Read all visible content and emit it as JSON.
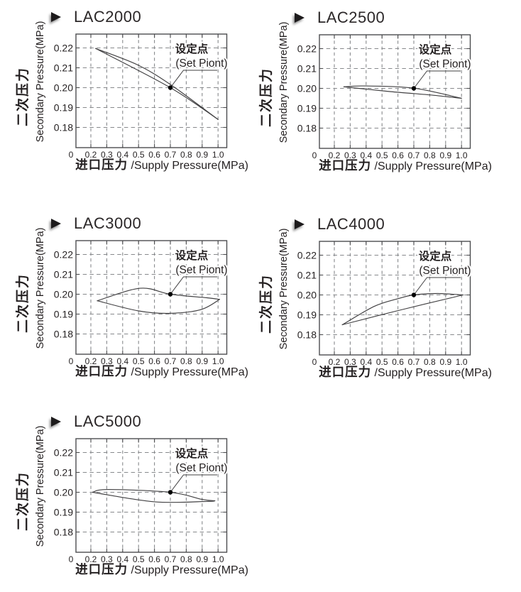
{
  "colors": {
    "text": "#231f20",
    "grid_dash": "#87898c",
    "axis_border": "#4c4d4f",
    "curve": "#414042",
    "marker": "#000000",
    "background": "#ffffff"
  },
  "shared_axis": {
    "ylabel_cn": "二次压力",
    "ylabel_en": "Secondary Pressure(MPa)",
    "xlabel_cn": "进口压力",
    "xlabel_en": " /Supply Pressure(MPa)"
  },
  "chart_data": [
    {
      "type": "line",
      "title": "LAC2000",
      "xlabel_cn": "进口压力",
      "xlabel_en": " /Supply Pressure(MPa)",
      "ylabel_cn": "二次压力",
      "ylabel_en": "Secondary Pressure(MPa)",
      "x_ticks": [
        "0",
        "0.2",
        "0.3",
        "0.4",
        "0.5",
        "0.6",
        "0.7",
        "0.8",
        "0.9",
        "1.0"
      ],
      "y_ticks": [
        "0.22",
        "0.21",
        "0.20",
        "0.19",
        "0.18"
      ],
      "ylim": [
        0.17,
        0.227
      ],
      "grid": "dashed",
      "annotation": {
        "label_cn": "设定点",
        "label_en": "(Set Piont)",
        "x": 0.7,
        "y": 0.2
      },
      "series": [
        {
          "name": "upper-branch",
          "smooth": true,
          "points": [
            [
              0.23,
              0.2197
            ],
            [
              0.49,
              0.2116
            ],
            [
              0.7,
              0.2016
            ],
            [
              1.0,
              0.184
            ]
          ]
        },
        {
          "name": "lower-branch",
          "smooth": true,
          "points": [
            [
              0.23,
              0.2197
            ],
            [
              0.7,
              0.2
            ],
            [
              1.0,
              0.184
            ]
          ]
        }
      ]
    },
    {
      "type": "line",
      "title": "LAC2500",
      "xlabel_cn": "进口压力",
      "xlabel_en": " /Supply Pressure(MPa)",
      "ylabel_cn": "二次压力",
      "ylabel_en": "Secondary Pressure(MPa)",
      "x_ticks": [
        "0",
        "0.2",
        "0.3",
        "0.4",
        "0.5",
        "0.6",
        "0.7",
        "0.8",
        "0.9",
        "1.0"
      ],
      "y_ticks": [
        "0.22",
        "0.21",
        "0.20",
        "0.19",
        "0.18"
      ],
      "ylim": [
        0.17,
        0.227
      ],
      "grid": "dashed",
      "annotation": {
        "label_cn": "设定点",
        "label_en": "(Set Piont)",
        "x": 0.7,
        "y": 0.2
      },
      "series": [
        {
          "name": "upper-branch",
          "smooth": true,
          "points": [
            [
              0.26,
              0.2008
            ],
            [
              0.4,
              0.2012
            ],
            [
              0.7,
              0.2001
            ],
            [
              1.0,
              0.195
            ]
          ]
        },
        {
          "name": "lower-branch",
          "smooth": true,
          "points": [
            [
              0.26,
              0.2008
            ],
            [
              0.55,
              0.1984
            ],
            [
              0.8,
              0.1967
            ],
            [
              1.0,
              0.195
            ]
          ]
        }
      ]
    },
    {
      "type": "line",
      "title": "LAC3000",
      "xlabel_cn": "进口压力",
      "xlabel_en": " /Supply Pressure(MPa)",
      "ylabel_cn": "二次压力",
      "ylabel_en": "Secondary Pressure(MPa)",
      "x_ticks": [
        "0",
        "0.2",
        "0.3",
        "0.4",
        "0.5",
        "0.6",
        "0.7",
        "0.8",
        "0.9",
        "1.0"
      ],
      "y_ticks": [
        "0.22",
        "0.21",
        "0.20",
        "0.19",
        "0.18"
      ],
      "ylim": [
        0.17,
        0.227
      ],
      "grid": "dashed",
      "annotation": {
        "label_cn": "设定点",
        "label_en": "(Set Piont)",
        "x": 0.7,
        "y": 0.2
      },
      "series": [
        {
          "name": "upper-branch",
          "smooth": true,
          "points": [
            [
              0.24,
              0.1967
            ],
            [
              0.51,
              0.203
            ],
            [
              0.7,
              0.2
            ],
            [
              0.93,
              0.1982
            ],
            [
              1.01,
              0.1974
            ]
          ]
        },
        {
          "name": "lower-branch",
          "smooth": true,
          "points": [
            [
              0.24,
              0.1967
            ],
            [
              0.5,
              0.1916
            ],
            [
              0.69,
              0.1904
            ],
            [
              0.89,
              0.1922
            ],
            [
              1.01,
              0.1974
            ]
          ]
        }
      ]
    },
    {
      "type": "line",
      "title": "LAC4000",
      "xlabel_cn": "进口压力",
      "xlabel_en": " /Supply Pressure(MPa)",
      "ylabel_cn": "二次压力",
      "ylabel_en": "Secondary Pressure(MPa)",
      "x_ticks": [
        "0",
        "0.2",
        "0.3",
        "0.4",
        "0.5",
        "0.6",
        "0.7",
        "0.8",
        "0.9",
        "1.0"
      ],
      "y_ticks": [
        "0.22",
        "0.21",
        "0.20",
        "0.19",
        "0.18"
      ],
      "ylim": [
        0.17,
        0.227
      ],
      "grid": "dashed",
      "annotation": {
        "label_cn": "设定点",
        "label_en": "(Set Piont)",
        "x": 0.7,
        "y": 0.2
      },
      "series": [
        {
          "name": "upper-branch",
          "smooth": true,
          "points": [
            [
              0.25,
              0.185
            ],
            [
              0.45,
              0.1942
            ],
            [
              0.6,
              0.1981
            ],
            [
              0.7,
              0.2
            ],
            [
              0.85,
              0.2007
            ],
            [
              1.01,
              0.2
            ]
          ]
        },
        {
          "name": "lower-branch",
          "smooth": true,
          "points": [
            [
              0.25,
              0.185
            ],
            [
              0.62,
              0.1925
            ],
            [
              1.01,
              0.2
            ]
          ]
        }
      ]
    },
    {
      "type": "line",
      "title": "LAC5000",
      "xlabel_cn": "进口压力",
      "xlabel_en": " /Supply Pressure(MPa)",
      "ylabel_cn": "二次压力",
      "ylabel_en": "Secondary Pressure(MPa)",
      "x_ticks": [
        "0",
        "0.2",
        "0.3",
        "0.4",
        "0.5",
        "0.6",
        "0.7",
        "0.8",
        "0.9",
        "1.0"
      ],
      "y_ticks": [
        "0.22",
        "0.21",
        "0.20",
        "0.19",
        "0.18"
      ],
      "ylim": [
        0.17,
        0.227
      ],
      "grid": "dashed",
      "annotation": {
        "label_cn": "设定点",
        "label_en": "(Set Piont)",
        "x": 0.7,
        "y": 0.2
      },
      "series": [
        {
          "name": "upper-branch",
          "smooth": true,
          "points": [
            [
              0.21,
              0.2
            ],
            [
              0.31,
              0.2014
            ],
            [
              0.7,
              0.2
            ],
            [
              0.9,
              0.1964
            ],
            [
              0.98,
              0.1957
            ]
          ]
        },
        {
          "name": "lower-branch",
          "smooth": true,
          "points": [
            [
              0.21,
              0.2
            ],
            [
              0.6,
              0.1952
            ],
            [
              0.93,
              0.1954
            ],
            [
              0.98,
              0.1957
            ]
          ]
        }
      ]
    }
  ]
}
